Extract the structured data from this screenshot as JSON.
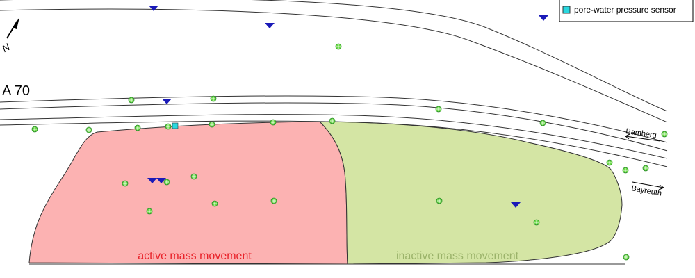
{
  "map": {
    "north": "N",
    "road": "A 70",
    "directions": {
      "west": "Bamberg",
      "east": "Bayreuth"
    },
    "areas": {
      "active": "active mass movement",
      "inactive": "inactive mass movement"
    },
    "legend": {
      "items": [
        {
          "label": "pore-water pressure sensor"
        }
      ]
    }
  }
}
